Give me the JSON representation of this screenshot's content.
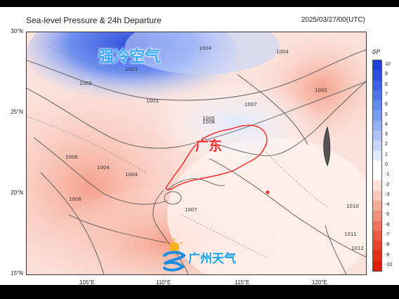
{
  "map": {
    "title": "Sea-level Pressure & 24h Departure",
    "timestamp": "2025/03/27/00(UTC)",
    "lat_ticks": [
      {
        "label": "30°N",
        "value": 30
      },
      {
        "label": "25°N",
        "value": 25
      },
      {
        "label": "20°N",
        "value": 20
      },
      {
        "label": "15°N",
        "value": 15
      }
    ],
    "lon_ticks": [
      {
        "label": "105°E",
        "value": 105
      },
      {
        "label": "110°E",
        "value": 110
      },
      {
        "label": "115°E",
        "value": 115
      },
      {
        "label": "120°E",
        "value": 120
      }
    ],
    "colorbar": {
      "title": "δP",
      "levels": [
        {
          "label": "10",
          "color": "#1f3fd6"
        },
        {
          "label": "9",
          "color": "#2b4fe0"
        },
        {
          "label": "8",
          "color": "#3a62e8"
        },
        {
          "label": "7",
          "color": "#4e76ee"
        },
        {
          "label": "6",
          "color": "#6389f2"
        },
        {
          "label": "5",
          "color": "#7b9cf5"
        },
        {
          "label": "4",
          "color": "#93aff7"
        },
        {
          "label": "3",
          "color": "#acc2f9"
        },
        {
          "label": "2",
          "color": "#c6d5fb"
        },
        {
          "label": "1",
          "color": "#e2eafd"
        },
        {
          "label": "0",
          "color": "#ffffff"
        },
        {
          "label": "-1",
          "color": "#ffffff"
        },
        {
          "label": "-2",
          "color": "#fde2dc"
        },
        {
          "label": "-3",
          "color": "#fbc7bb"
        },
        {
          "label": "-4",
          "color": "#f8ab9b"
        },
        {
          "label": "-5",
          "color": "#f58f7b"
        },
        {
          "label": "-6",
          "color": "#f2745d"
        },
        {
          "label": "-7",
          "color": "#ee5a41"
        },
        {
          "label": "-8",
          "color": "#ea4129"
        },
        {
          "label": "-9",
          "color": "#e52c16"
        },
        {
          "label": "-10",
          "color": "#de1b07"
        }
      ]
    },
    "isobars": [
      {
        "label": "1004"
      },
      {
        "label": "1002"
      },
      {
        "label": "1003"
      },
      {
        "label": "1005"
      },
      {
        "label": "1006"
      },
      {
        "label": "1007"
      },
      {
        "label": "1008"
      },
      {
        "label": "1010"
      },
      {
        "label": "1011"
      },
      {
        "label": "1012"
      }
    ],
    "annotations": {
      "cold_air": "强冷空气",
      "province": "广东",
      "logo": "广州天气"
    },
    "colors": {
      "cold": "#3c62e6",
      "warm": "#f4a08e",
      "province_border": "#ff2a2a"
    }
  }
}
